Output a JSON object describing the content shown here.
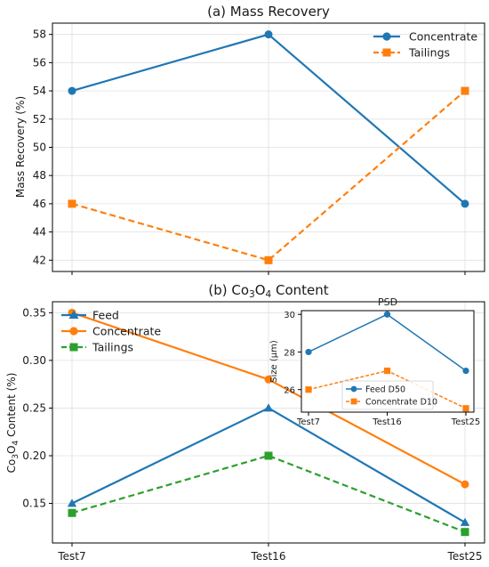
{
  "chart_data": [
    {
      "type": "line",
      "title": "(a) Mass Recovery",
      "xlabel": "",
      "ylabel": "Mass Recovery (%)",
      "categories": [
        "Test7",
        "Test16",
        "Test25"
      ],
      "show_x_tick_labels": false,
      "ylim": [
        41.2,
        58.8
      ],
      "yticks": [
        42,
        44,
        46,
        48,
        50,
        52,
        54,
        56,
        58
      ],
      "grid": true,
      "legend": "top-right",
      "series": [
        {
          "name": "Concentrate",
          "values": [
            54,
            58,
            46
          ],
          "color": "#1f77b4",
          "marker": "circle",
          "dashed": false
        },
        {
          "name": "Tailings",
          "values": [
            46,
            42,
            54
          ],
          "color": "#ff7f0e",
          "marker": "square",
          "dashed": true
        }
      ]
    },
    {
      "type": "line",
      "title_prefix": "(b) Co",
      "title_sub1": "3",
      "title_mid": "O",
      "title_sub2": "4",
      "title_suffix": " Content",
      "ylabel_prefix": "Co",
      "ylabel_sub1": "3",
      "ylabel_mid": "O",
      "ylabel_sub2": "4",
      "ylabel_suffix": " Content (%)",
      "xlabel": "",
      "categories": [
        "Test7",
        "Test16",
        "Test25"
      ],
      "ylim": [
        0.1085,
        0.3615
      ],
      "yticks": [
        0.15,
        0.2,
        0.25,
        0.3,
        0.35
      ],
      "ytick_labels": [
        "0.15",
        "0.20",
        "0.25",
        "0.30",
        "0.35"
      ],
      "grid": true,
      "legend": "top-left",
      "series": [
        {
          "name": "Feed",
          "values": [
            0.15,
            0.25,
            0.13
          ],
          "color": "#1f77b4",
          "marker": "triangle",
          "dashed": false
        },
        {
          "name": "Concentrate",
          "values": [
            0.35,
            0.28,
            0.17
          ],
          "color": "#ff7f0e",
          "marker": "circle",
          "dashed": false
        },
        {
          "name": "Tailings",
          "values": [
            0.14,
            0.2,
            0.12
          ],
          "color": "#2ca02c",
          "marker": "square",
          "dashed": true
        }
      ]
    },
    {
      "type": "line",
      "title": "PSD",
      "xlabel": "",
      "ylabel": "Size (μm)",
      "categories": [
        "Test7",
        "Test16",
        "Test25"
      ],
      "ylim": [
        24.8,
        30.2
      ],
      "yticks": [
        26,
        28,
        30
      ],
      "grid": false,
      "legend": "bottom-center",
      "series": [
        {
          "name": "Feed D50",
          "values": [
            28,
            30,
            27
          ],
          "color": "#1f77b4",
          "marker": "circle",
          "dashed": false
        },
        {
          "name": "Concentrate D10",
          "values": [
            26,
            27,
            25
          ],
          "color": "#ff7f0e",
          "marker": "square",
          "dashed": true
        }
      ]
    }
  ]
}
